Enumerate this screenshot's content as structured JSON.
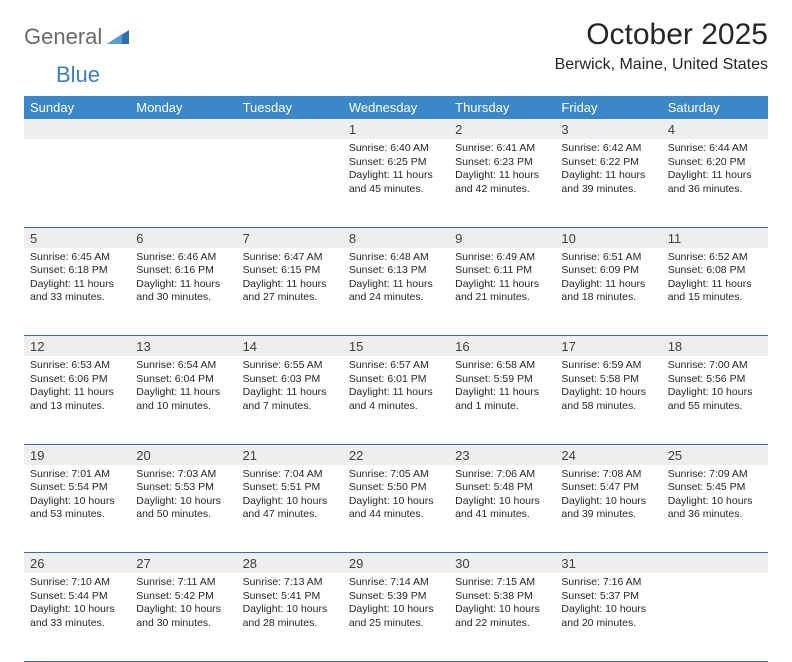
{
  "brand": {
    "part1": "General",
    "part2": "Blue"
  },
  "title": "October 2025",
  "location": "Berwick, Maine, United States",
  "colors": {
    "header_bg": "#3b87c8",
    "header_text": "#ffffff",
    "daynum_bg": "#eeeeee",
    "row_border": "#3b6fa0",
    "text": "#262626",
    "logo_gray": "#6a6a6a",
    "logo_blue": "#3b7fbf"
  },
  "weekdays": [
    "Sunday",
    "Monday",
    "Tuesday",
    "Wednesday",
    "Thursday",
    "Friday",
    "Saturday"
  ],
  "weeks": [
    [
      {
        "day": "",
        "sunrise": "",
        "sunset": "",
        "daylight": ""
      },
      {
        "day": "",
        "sunrise": "",
        "sunset": "",
        "daylight": ""
      },
      {
        "day": "",
        "sunrise": "",
        "sunset": "",
        "daylight": ""
      },
      {
        "day": "1",
        "sunrise": "Sunrise: 6:40 AM",
        "sunset": "Sunset: 6:25 PM",
        "daylight": "Daylight: 11 hours and 45 minutes."
      },
      {
        "day": "2",
        "sunrise": "Sunrise: 6:41 AM",
        "sunset": "Sunset: 6:23 PM",
        "daylight": "Daylight: 11 hours and 42 minutes."
      },
      {
        "day": "3",
        "sunrise": "Sunrise: 6:42 AM",
        "sunset": "Sunset: 6:22 PM",
        "daylight": "Daylight: 11 hours and 39 minutes."
      },
      {
        "day": "4",
        "sunrise": "Sunrise: 6:44 AM",
        "sunset": "Sunset: 6:20 PM",
        "daylight": "Daylight: 11 hours and 36 minutes."
      }
    ],
    [
      {
        "day": "5",
        "sunrise": "Sunrise: 6:45 AM",
        "sunset": "Sunset: 6:18 PM",
        "daylight": "Daylight: 11 hours and 33 minutes."
      },
      {
        "day": "6",
        "sunrise": "Sunrise: 6:46 AM",
        "sunset": "Sunset: 6:16 PM",
        "daylight": "Daylight: 11 hours and 30 minutes."
      },
      {
        "day": "7",
        "sunrise": "Sunrise: 6:47 AM",
        "sunset": "Sunset: 6:15 PM",
        "daylight": "Daylight: 11 hours and 27 minutes."
      },
      {
        "day": "8",
        "sunrise": "Sunrise: 6:48 AM",
        "sunset": "Sunset: 6:13 PM",
        "daylight": "Daylight: 11 hours and 24 minutes."
      },
      {
        "day": "9",
        "sunrise": "Sunrise: 6:49 AM",
        "sunset": "Sunset: 6:11 PM",
        "daylight": "Daylight: 11 hours and 21 minutes."
      },
      {
        "day": "10",
        "sunrise": "Sunrise: 6:51 AM",
        "sunset": "Sunset: 6:09 PM",
        "daylight": "Daylight: 11 hours and 18 minutes."
      },
      {
        "day": "11",
        "sunrise": "Sunrise: 6:52 AM",
        "sunset": "Sunset: 6:08 PM",
        "daylight": "Daylight: 11 hours and 15 minutes."
      }
    ],
    [
      {
        "day": "12",
        "sunrise": "Sunrise: 6:53 AM",
        "sunset": "Sunset: 6:06 PM",
        "daylight": "Daylight: 11 hours and 13 minutes."
      },
      {
        "day": "13",
        "sunrise": "Sunrise: 6:54 AM",
        "sunset": "Sunset: 6:04 PM",
        "daylight": "Daylight: 11 hours and 10 minutes."
      },
      {
        "day": "14",
        "sunrise": "Sunrise: 6:55 AM",
        "sunset": "Sunset: 6:03 PM",
        "daylight": "Daylight: 11 hours and 7 minutes."
      },
      {
        "day": "15",
        "sunrise": "Sunrise: 6:57 AM",
        "sunset": "Sunset: 6:01 PM",
        "daylight": "Daylight: 11 hours and 4 minutes."
      },
      {
        "day": "16",
        "sunrise": "Sunrise: 6:58 AM",
        "sunset": "Sunset: 5:59 PM",
        "daylight": "Daylight: 11 hours and 1 minute."
      },
      {
        "day": "17",
        "sunrise": "Sunrise: 6:59 AM",
        "sunset": "Sunset: 5:58 PM",
        "daylight": "Daylight: 10 hours and 58 minutes."
      },
      {
        "day": "18",
        "sunrise": "Sunrise: 7:00 AM",
        "sunset": "Sunset: 5:56 PM",
        "daylight": "Daylight: 10 hours and 55 minutes."
      }
    ],
    [
      {
        "day": "19",
        "sunrise": "Sunrise: 7:01 AM",
        "sunset": "Sunset: 5:54 PM",
        "daylight": "Daylight: 10 hours and 53 minutes."
      },
      {
        "day": "20",
        "sunrise": "Sunrise: 7:03 AM",
        "sunset": "Sunset: 5:53 PM",
        "daylight": "Daylight: 10 hours and 50 minutes."
      },
      {
        "day": "21",
        "sunrise": "Sunrise: 7:04 AM",
        "sunset": "Sunset: 5:51 PM",
        "daylight": "Daylight: 10 hours and 47 minutes."
      },
      {
        "day": "22",
        "sunrise": "Sunrise: 7:05 AM",
        "sunset": "Sunset: 5:50 PM",
        "daylight": "Daylight: 10 hours and 44 minutes."
      },
      {
        "day": "23",
        "sunrise": "Sunrise: 7:06 AM",
        "sunset": "Sunset: 5:48 PM",
        "daylight": "Daylight: 10 hours and 41 minutes."
      },
      {
        "day": "24",
        "sunrise": "Sunrise: 7:08 AM",
        "sunset": "Sunset: 5:47 PM",
        "daylight": "Daylight: 10 hours and 39 minutes."
      },
      {
        "day": "25",
        "sunrise": "Sunrise: 7:09 AM",
        "sunset": "Sunset: 5:45 PM",
        "daylight": "Daylight: 10 hours and 36 minutes."
      }
    ],
    [
      {
        "day": "26",
        "sunrise": "Sunrise: 7:10 AM",
        "sunset": "Sunset: 5:44 PM",
        "daylight": "Daylight: 10 hours and 33 minutes."
      },
      {
        "day": "27",
        "sunrise": "Sunrise: 7:11 AM",
        "sunset": "Sunset: 5:42 PM",
        "daylight": "Daylight: 10 hours and 30 minutes."
      },
      {
        "day": "28",
        "sunrise": "Sunrise: 7:13 AM",
        "sunset": "Sunset: 5:41 PM",
        "daylight": "Daylight: 10 hours and 28 minutes."
      },
      {
        "day": "29",
        "sunrise": "Sunrise: 7:14 AM",
        "sunset": "Sunset: 5:39 PM",
        "daylight": "Daylight: 10 hours and 25 minutes."
      },
      {
        "day": "30",
        "sunrise": "Sunrise: 7:15 AM",
        "sunset": "Sunset: 5:38 PM",
        "daylight": "Daylight: 10 hours and 22 minutes."
      },
      {
        "day": "31",
        "sunrise": "Sunrise: 7:16 AM",
        "sunset": "Sunset: 5:37 PM",
        "daylight": "Daylight: 10 hours and 20 minutes."
      },
      {
        "day": "",
        "sunrise": "",
        "sunset": "",
        "daylight": ""
      }
    ]
  ]
}
